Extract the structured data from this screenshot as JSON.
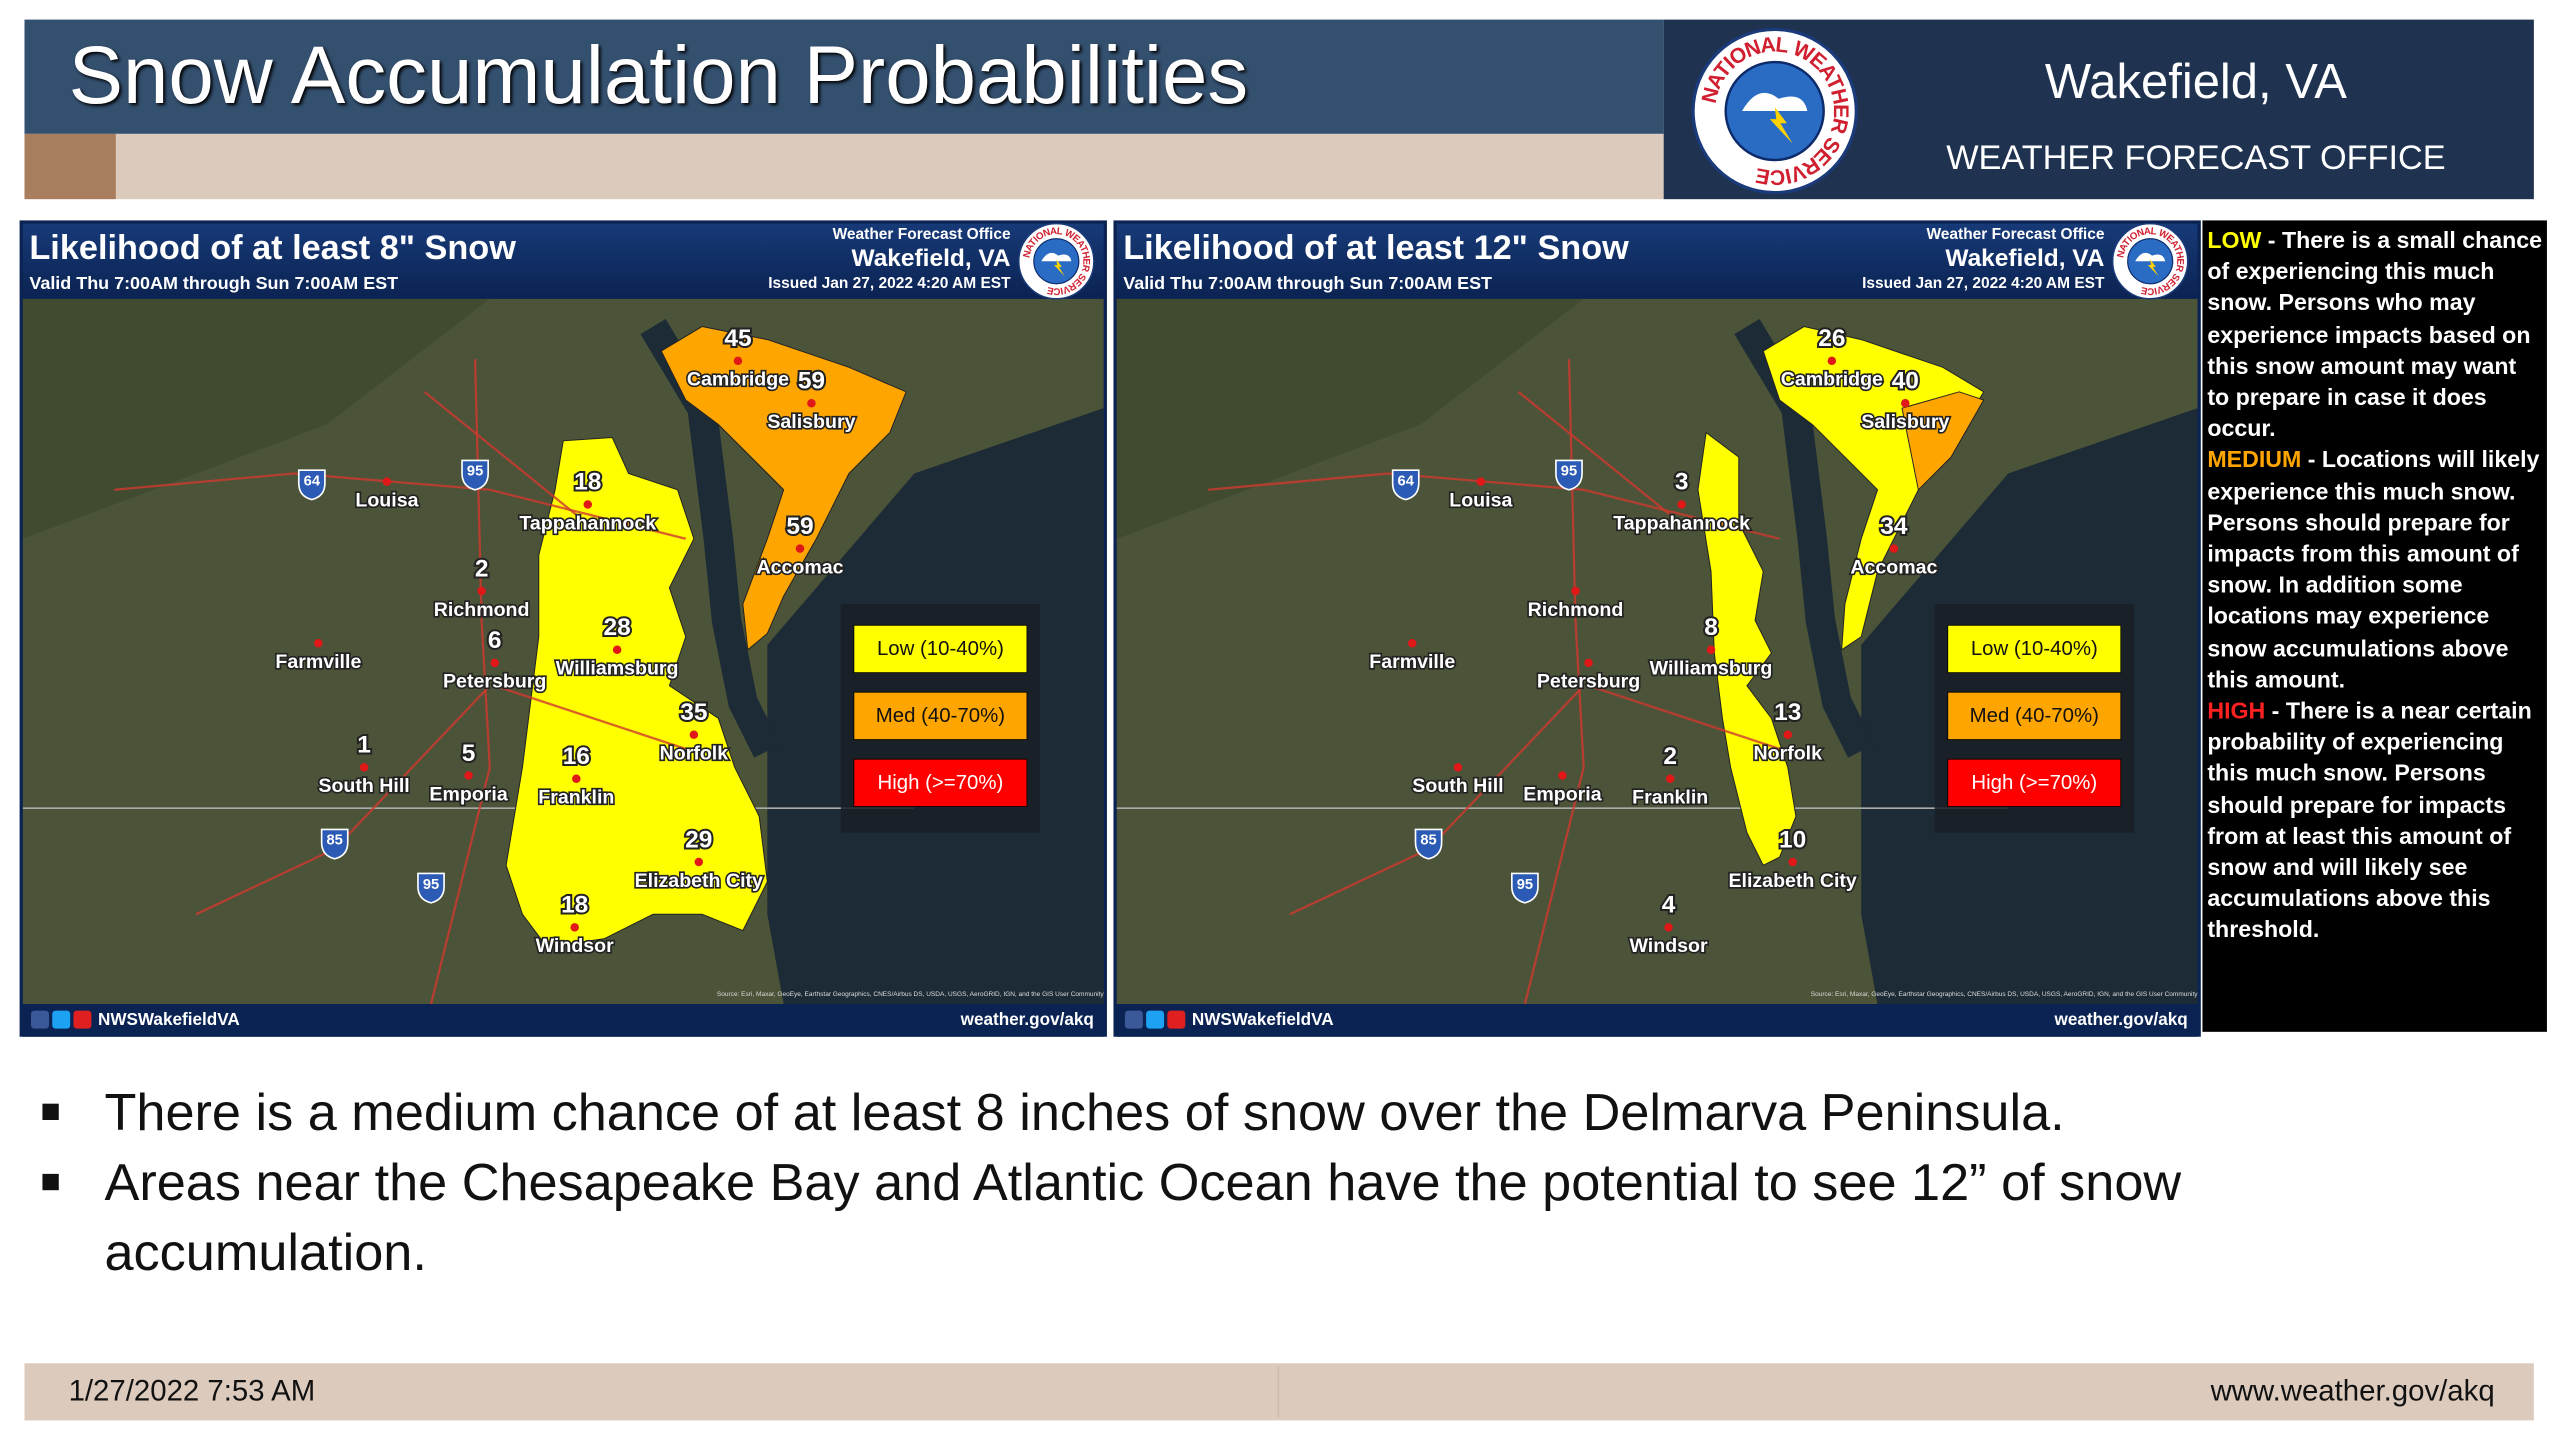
{
  "header": {
    "title": "Snow Accumulation Probabilities",
    "office": "Wakefield, VA",
    "office_subtitle": "WEATHER FORECAST OFFICE",
    "logo_text": "NATIONAL WEATHER SERVICE"
  },
  "maps": [
    {
      "title": "Likelihood of at least 8\" Snow",
      "valid": "Valid Thu 7:00AM through Sun 7:00AM EST",
      "office_label": "Weather Forecast Office",
      "office": "Wakefield, VA",
      "issued": "Issued Jan 27, 2022 4:20 AM EST",
      "cities": [
        {
          "name": "Cambridge",
          "value": 45
        },
        {
          "name": "Salisbury",
          "value": 59
        },
        {
          "name": "Louisa"
        },
        {
          "name": "Tappahannock",
          "value": 18
        },
        {
          "name": "Accomac",
          "value": 59
        },
        {
          "name": "Richmond",
          "value": 2
        },
        {
          "name": "Farmville"
        },
        {
          "name": "Williamsburg",
          "value": 28
        },
        {
          "name": "Petersburg",
          "value": 6
        },
        {
          "name": "Norfolk",
          "value": 35
        },
        {
          "name": "South Hill",
          "value": 1
        },
        {
          "name": "Emporia",
          "value": 5
        },
        {
          "name": "Franklin",
          "value": 16
        },
        {
          "name": "Elizabeth City",
          "value": 29
        },
        {
          "name": "Windsor",
          "value": 18
        }
      ],
      "shields": [
        "64",
        "95",
        "85",
        "95"
      ],
      "legend": [
        "Low (10-40%)",
        "Med (40-70%)",
        "High (>=70%)"
      ],
      "source": "Source: Esri, Maxar, GeoEye, Earthstar Geographics, CNES/Airbus DS, USDA, USGS, AeroGRID, IGN, and the GIS User Community",
      "social": "NWSWakefieldVA",
      "url": "weather.gov/akq"
    },
    {
      "title": "Likelihood of at least 12\" Snow",
      "valid": "Valid Thu 7:00AM through Sun 7:00AM EST",
      "office_label": "Weather Forecast Office",
      "office": "Wakefield, VA",
      "issued": "Issued Jan 27, 2022 4:20 AM EST",
      "cities": [
        {
          "name": "Cambridge",
          "value": 26
        },
        {
          "name": "Salisbury",
          "value": 40
        },
        {
          "name": "Louisa"
        },
        {
          "name": "Tappahannock",
          "value": 3
        },
        {
          "name": "Accomac",
          "value": 34
        },
        {
          "name": "Richmond"
        },
        {
          "name": "Farmville"
        },
        {
          "name": "Williamsburg",
          "value": 8
        },
        {
          "name": "Petersburg"
        },
        {
          "name": "Norfolk",
          "value": 13
        },
        {
          "name": "South Hill"
        },
        {
          "name": "Emporia"
        },
        {
          "name": "Franklin",
          "value": 2
        },
        {
          "name": "Elizabeth City",
          "value": 10
        },
        {
          "name": "Windsor",
          "value": 4
        }
      ],
      "shields": [
        "64",
        "95",
        "85",
        "95"
      ],
      "legend": [
        "Low (10-40%)",
        "Med (40-70%)",
        "High (>=70%)"
      ],
      "source": "Source: Esri, Maxar, GeoEye, Earthstar Geographics, CNES/Airbus DS, USDA, USGS, AeroGRID, IGN, and the GIS User Community",
      "social": "NWSWakefieldVA",
      "url": "weather.gov/akq"
    }
  ],
  "sidebar": [
    {
      "level": "LOW",
      "text": " -  There is a small chance of experiencing this much snow. Persons who may experience impacts based on this snow amount may want to prepare in case it does occur."
    },
    {
      "level": "MEDIUM",
      "text": " -  Locations will likely experience this much snow. Persons should prepare for impacts from this amount of snow. In addition some locations may experience snow accumulations above this amount."
    },
    {
      "level": "HIGH",
      "text": " - There is a near certain probability of experiencing this much snow. Persons should prepare for impacts from at least this amount of snow and will likely see accumulations above this threshold."
    }
  ],
  "bullets": [
    "There is a medium chance of at least 8 inches of snow over the Delmarva Peninsula.",
    "Areas near the Chesapeake Bay and Atlantic Ocean have the potential to see 12” of snow accumulation."
  ],
  "footer": {
    "date": "1/27/2022 7:53 AM",
    "url": "www.weather.gov/akq"
  }
}
